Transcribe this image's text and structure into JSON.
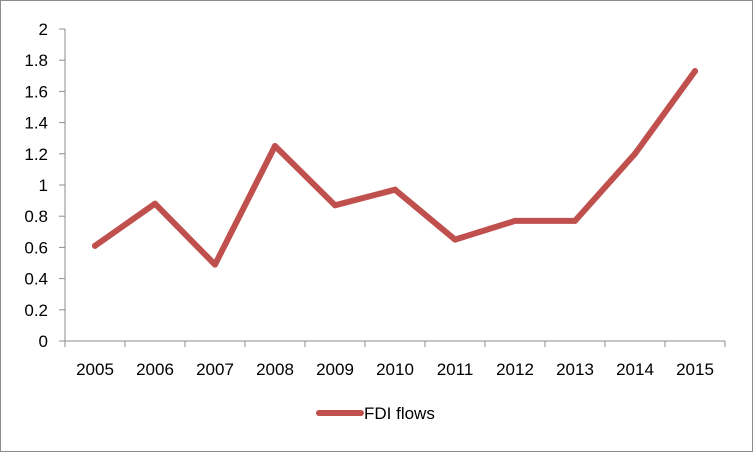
{
  "chart_data": {
    "type": "line",
    "title": "",
    "xlabel": "",
    "ylabel": "",
    "x": [
      "2005",
      "2006",
      "2007",
      "2008",
      "2009",
      "2010",
      "2011",
      "2012",
      "2013",
      "2014",
      "2015"
    ],
    "ylim": [
      0,
      2
    ],
    "yticks": [
      "0",
      "0.2",
      "0.4",
      "0.6",
      "0.8",
      "1",
      "1.2",
      "1.4",
      "1.6",
      "1.8",
      "2"
    ],
    "grid": false,
    "legend_position": "bottom",
    "series": [
      {
        "name": "FDI flows",
        "color": "#c0504d",
        "values": [
          0.61,
          0.88,
          0.49,
          1.25,
          0.87,
          0.97,
          0.65,
          0.77,
          0.77,
          1.2,
          1.73
        ]
      }
    ]
  }
}
